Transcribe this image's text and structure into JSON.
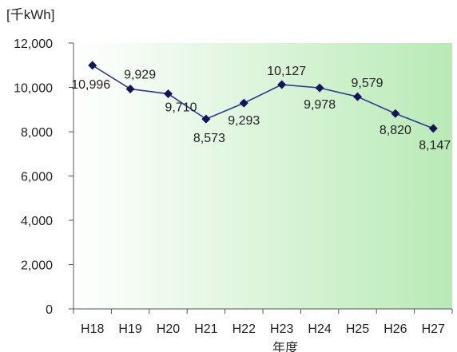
{
  "chart_data": {
    "type": "line",
    "unit_label": "[千kWh]",
    "xlabel": "年度",
    "ylabel": "",
    "categories": [
      "H18",
      "H19",
      "H20",
      "H21",
      "H22",
      "H23",
      "H24",
      "H25",
      "H26",
      "H27"
    ],
    "series": [
      {
        "values": [
          10996,
          9929,
          9710,
          8573,
          9293,
          10127,
          9978,
          9579,
          8820,
          8147
        ],
        "data_labels": [
          "10,996",
          "9,929",
          "9,710",
          "8,573",
          "9,293",
          "10,127",
          "9,978",
          "9,579",
          "8,820",
          "8,147"
        ]
      }
    ],
    "ylim": [
      0,
      12000
    ],
    "yticks": [
      0,
      2000,
      4000,
      6000,
      8000,
      10000,
      12000
    ],
    "ytick_labels": [
      "0",
      "2,000",
      "4,000",
      "6,000",
      "8,000",
      "10,000",
      "12,000"
    ],
    "grid": false,
    "legend": "none",
    "colors": {
      "line": "#2e3c8c",
      "marker": "#14145a",
      "plot_bg_start": "#ffffff",
      "plot_bg_end": "#b9eab6",
      "axis": "#555555"
    }
  }
}
